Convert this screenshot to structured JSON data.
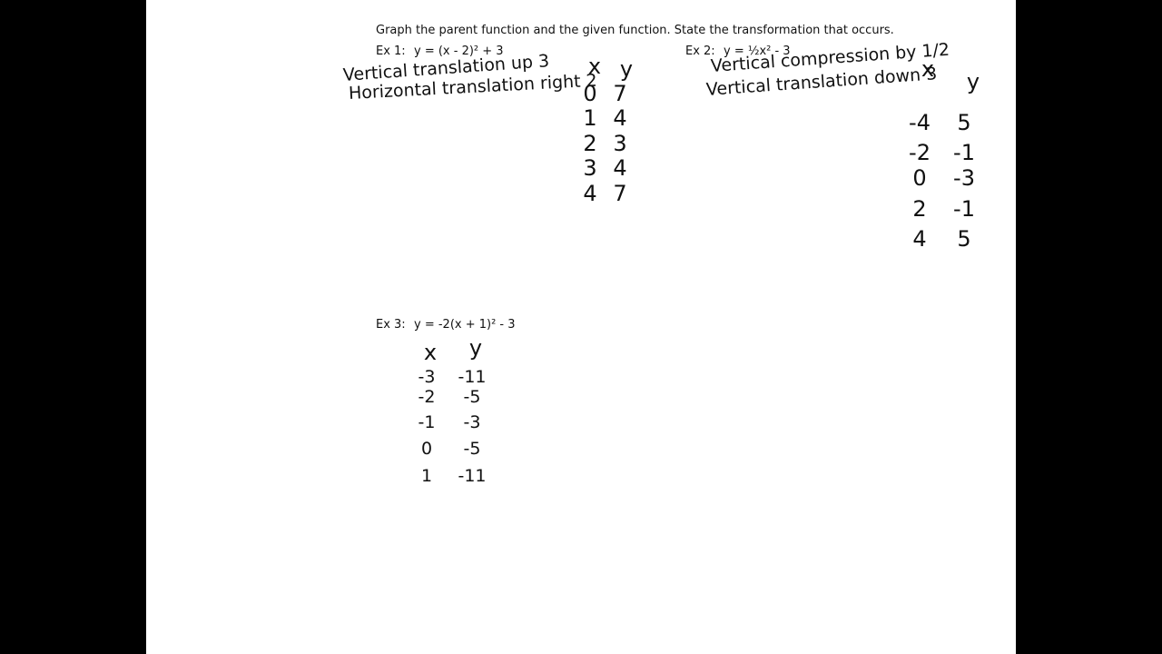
{
  "header": {
    "instructions": "Graph the parent function and the given function. State the transformation that occurs."
  },
  "examples": [
    {
      "label": "Ex 1:",
      "equation": "y = (x - 2)² + 3",
      "notes": [
        "Vertical translation up 3",
        "Horizontal translation right 2"
      ],
      "table": {
        "headers": [
          "x",
          "y"
        ],
        "rows": [
          [
            "0",
            "7"
          ],
          [
            "1",
            "4"
          ],
          [
            "2",
            "3"
          ],
          [
            "3",
            "4"
          ],
          [
            "4",
            "7"
          ]
        ]
      }
    },
    {
      "label": "Ex 2:",
      "equation": "y = ½x² - 3",
      "notes": [
        "Vertical compression by 1/2",
        "Vertical translation down 3"
      ],
      "table": {
        "headers": [
          "x",
          "y"
        ],
        "rows": [
          [
            "-4",
            "5"
          ],
          [
            "-2",
            "-1"
          ],
          [
            "0",
            "-3"
          ],
          [
            "2",
            "-1"
          ],
          [
            "4",
            "5"
          ]
        ]
      }
    },
    {
      "label": "Ex 3:",
      "equation": "y = -2(x + 1)² - 3",
      "table": {
        "headers": [
          "x",
          "y"
        ],
        "rows": [
          [
            "-3",
            "-11"
          ],
          [
            "-2",
            "-5"
          ],
          [
            "-1",
            "-3"
          ],
          [
            "0",
            "-5"
          ],
          [
            "1",
            "-11"
          ]
        ]
      }
    }
  ]
}
